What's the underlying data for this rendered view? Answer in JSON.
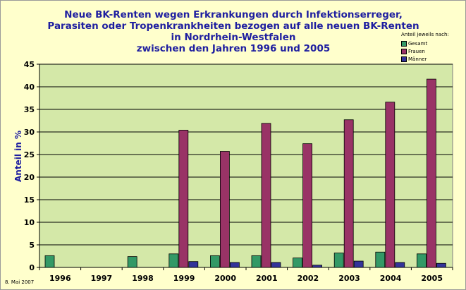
{
  "chart_data": {
    "type": "bar",
    "title_lines": [
      "Neue BK-Renten wegen Erkrankungen durch Infektionserreger,",
      "Parasiten oder Tropenkrankheiten bezogen auf alle neuen BK-Renten",
      "in Nordrhein-Westfalen",
      "zwischen den Jahren 1996 und 2005"
    ],
    "ylabel": "Anteil in %",
    "xlabel": "",
    "categories": [
      "1996",
      "1997",
      "1998",
      "1999",
      "2000",
      "2001",
      "2002",
      "2003",
      "2004",
      "2005"
    ],
    "series": [
      {
        "name": "Gesamt",
        "color": "#339966",
        "values": [
          2.6,
          0,
          2.4,
          3.0,
          2.6,
          2.6,
          2.1,
          3.2,
          3.4,
          3.0
        ]
      },
      {
        "name": "Frauen",
        "color": "#993366",
        "values": [
          0,
          0,
          0,
          30.4,
          25.7,
          31.9,
          27.4,
          32.7,
          36.6,
          41.7
        ]
      },
      {
        "name": "Männer",
        "color": "#333399",
        "values": [
          0,
          0,
          0,
          1.3,
          1.1,
          1.1,
          0.5,
          1.4,
          1.1,
          0.9
        ]
      }
    ],
    "ylim": [
      0,
      45
    ],
    "yticks": [
      0,
      5,
      10,
      15,
      20,
      25,
      30,
      35,
      40,
      45
    ],
    "grid": true,
    "legend_title": "Anteil jeweils nach:",
    "legend_position": "top-right",
    "colors": {
      "plot_background": "#d4e8a8",
      "chart_background": "#ffffcc",
      "title": "#1f1fa0"
    }
  },
  "footer": {
    "date": "8. Mai 2007"
  }
}
